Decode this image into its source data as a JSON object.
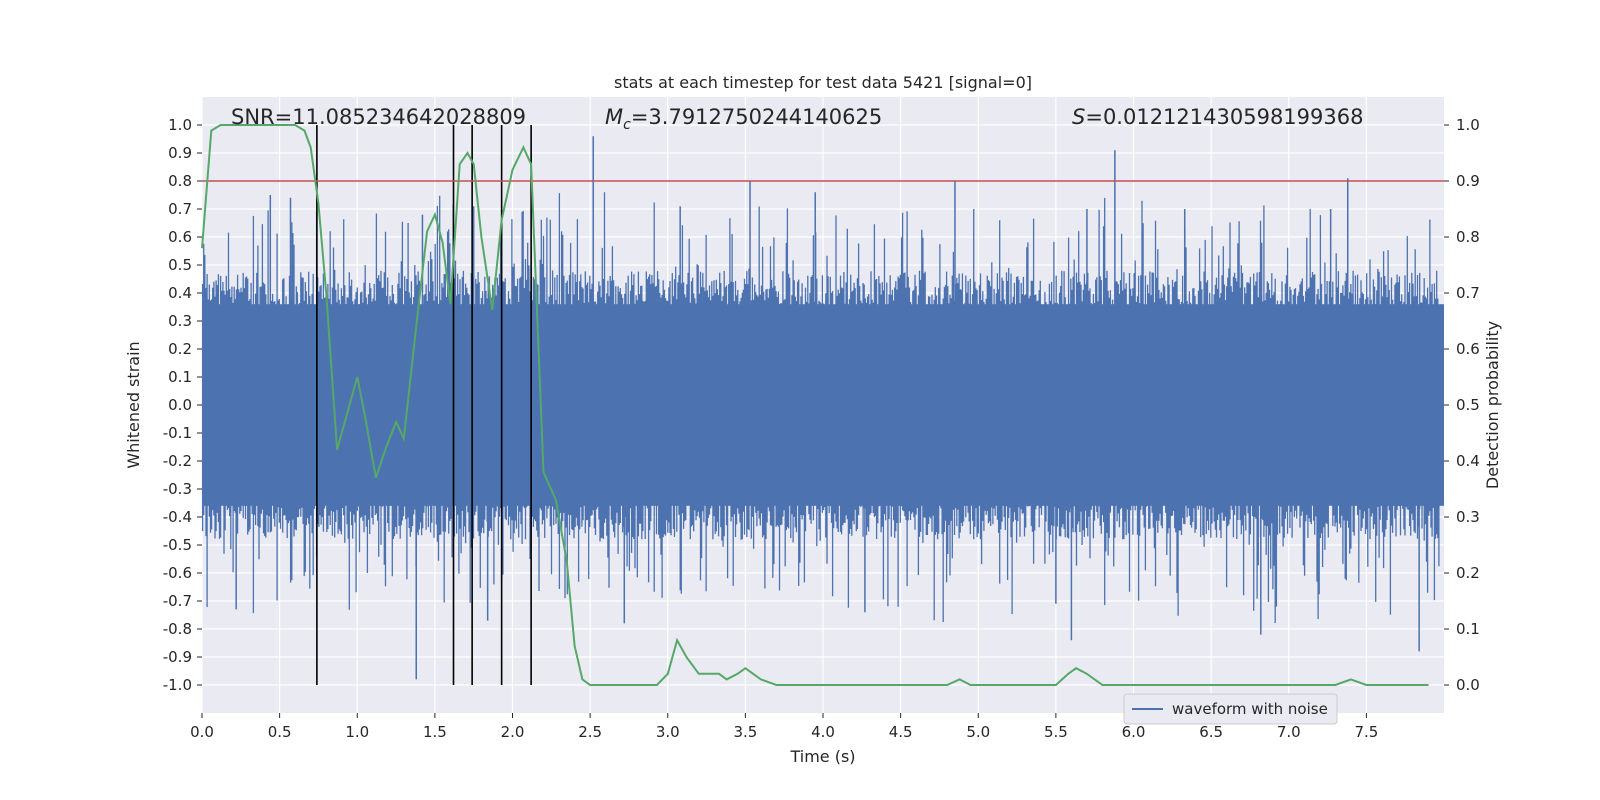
{
  "chart_data": {
    "type": "line",
    "title": "stats at each timestep for test data 5421 [signal=0]",
    "xlabel": "Time (s)",
    "ylabel": "Whitened strain",
    "y2label": "Detection probability",
    "xlim": [
      0.0,
      8.0
    ],
    "ylim": [
      -1.1,
      1.1
    ],
    "y2lim": [
      -0.05,
      1.05
    ],
    "xticks": [
      "0.0",
      "0.5",
      "1.0",
      "1.5",
      "2.0",
      "2.5",
      "3.0",
      "3.5",
      "4.0",
      "4.5",
      "5.0",
      "5.5",
      "6.0",
      "6.5",
      "7.0",
      "7.5"
    ],
    "yticks": [
      "1.0",
      "0.9",
      "0.8",
      "0.7",
      "0.6",
      "0.5",
      "0.4",
      "0.3",
      "0.2",
      "0.1",
      "0.0",
      "-0.1",
      "-0.2",
      "-0.3",
      "-0.4",
      "-0.5",
      "-0.6",
      "-0.7",
      "-0.8",
      "-0.9",
      "-1.0"
    ],
    "y2ticks": [
      "1.0",
      "0.9",
      "0.8",
      "0.7",
      "0.6",
      "0.5",
      "0.4",
      "0.3",
      "0.2",
      "0.1",
      "0.0"
    ],
    "annotations": {
      "snr": "SNR=11.085234642028809",
      "mc_symbol": "M",
      "mc_sub": "c",
      "mc_value": "=3.7912750244140625",
      "s_symbol": "S",
      "s_value": "=0.012121430598199368"
    },
    "threshold": 0.9,
    "vlines": [
      0.74,
      1.62,
      1.74,
      1.93,
      2.12
    ],
    "legend": {
      "label": "waveform with noise",
      "placement": "lower-right"
    },
    "grid": true,
    "series": [
      {
        "name": "waveform with noise",
        "color": "#4c72b0",
        "kind": "strain",
        "band_amplitude": 0.4,
        "spikes": [
          {
            "x": 2.52,
            "y": 0.96
          },
          {
            "x": 5.88,
            "y": 0.91
          },
          {
            "x": 7.38,
            "y": 0.81
          },
          {
            "x": 3.53,
            "y": 0.8
          },
          {
            "x": 3.95,
            "y": 0.76
          },
          {
            "x": 4.85,
            "y": 0.8
          },
          {
            "x": 0.44,
            "y": 0.75
          },
          {
            "x": 0.57,
            "y": 0.74
          },
          {
            "x": 1.42,
            "y": 0.68
          },
          {
            "x": 1.75,
            "y": 0.71
          },
          {
            "x": 3.08,
            "y": 0.71
          },
          {
            "x": 5.7,
            "y": 0.7
          },
          {
            "x": 6.33,
            "y": 0.7
          },
          {
            "x": 7.27,
            "y": 0.7
          },
          {
            "x": 1.38,
            "y": -0.98
          },
          {
            "x": 5.6,
            "y": -0.84
          },
          {
            "x": 7.84,
            "y": -0.88
          },
          {
            "x": 6.82,
            "y": -0.82
          },
          {
            "x": 2.72,
            "y": -0.78
          },
          {
            "x": 1.84,
            "y": -0.77
          },
          {
            "x": 4.27,
            "y": -0.74
          },
          {
            "x": 0.22,
            "y": -0.73
          },
          {
            "x": 6.92,
            "y": -0.72
          },
          {
            "x": 5.5,
            "y": -0.71
          }
        ]
      },
      {
        "name": "",
        "color": "#55a868",
        "kind": "probability",
        "x": [
          0.0,
          0.06,
          0.12,
          0.2,
          0.3,
          0.4,
          0.5,
          0.6,
          0.66,
          0.7,
          0.75,
          0.8,
          0.87,
          0.95,
          1.0,
          1.05,
          1.12,
          1.18,
          1.25,
          1.3,
          1.38,
          1.45,
          1.5,
          1.55,
          1.6,
          1.66,
          1.71,
          1.75,
          1.8,
          1.87,
          1.93,
          2.0,
          2.07,
          2.12,
          2.2,
          2.28,
          2.35,
          2.4,
          2.45,
          2.5,
          2.6,
          2.7,
          2.8,
          2.93,
          3.0,
          3.06,
          3.12,
          3.2,
          3.33,
          3.38,
          3.45,
          3.5,
          3.55,
          3.6,
          3.7,
          3.8,
          3.9,
          4.0,
          4.2,
          4.5,
          4.8,
          4.88,
          4.95,
          5.0,
          5.2,
          5.4,
          5.5,
          5.58,
          5.63,
          5.7,
          5.8,
          6.0,
          6.3,
          6.5,
          6.8,
          7.0,
          7.3,
          7.4,
          7.5,
          7.9
        ],
        "y": [
          0.78,
          0.99,
          1.0,
          1.0,
          1.0,
          1.0,
          1.0,
          1.0,
          0.99,
          0.96,
          0.86,
          0.7,
          0.42,
          0.5,
          0.55,
          0.48,
          0.37,
          0.42,
          0.47,
          0.44,
          0.64,
          0.81,
          0.84,
          0.79,
          0.68,
          0.93,
          0.95,
          0.93,
          0.8,
          0.67,
          0.83,
          0.92,
          0.96,
          0.93,
          0.38,
          0.33,
          0.22,
          0.07,
          0.01,
          0.0,
          0.0,
          0.0,
          0.0,
          0.0,
          0.02,
          0.08,
          0.05,
          0.02,
          0.02,
          0.01,
          0.02,
          0.03,
          0.02,
          0.01,
          0.0,
          0.0,
          0.0,
          0.0,
          0.0,
          0.0,
          0.0,
          0.01,
          0.0,
          0.0,
          0.0,
          0.0,
          0.0,
          0.02,
          0.03,
          0.02,
          0.0,
          0.0,
          0.0,
          0.0,
          0.0,
          0.0,
          0.0,
          0.01,
          0.0,
          0.0
        ]
      }
    ]
  }
}
